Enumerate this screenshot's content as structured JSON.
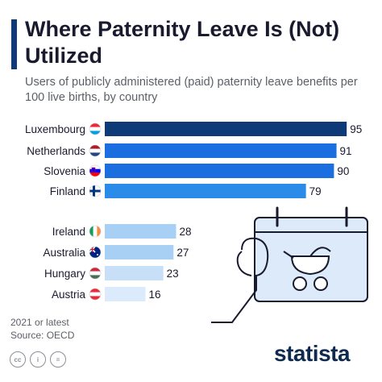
{
  "header": {
    "title": "Where Paternity Leave Is (Not) Utilized",
    "subtitle": "Users of publicly administered (paid) paternity leave benefits per 100 live births, by country"
  },
  "chart_data": {
    "type": "bar",
    "orientation": "horizontal",
    "categories": [
      "Luxembourg",
      "Netherlands",
      "Slovenia",
      "Finland",
      "Ireland",
      "Australia",
      "Hungary",
      "Austria"
    ],
    "values": [
      95,
      91,
      90,
      79,
      28,
      27,
      23,
      16
    ],
    "bar_colors": [
      "#0e3a78",
      "#1a6ee0",
      "#1a6ee0",
      "#2b8be8",
      "#a8d0f5",
      "#a8d0f5",
      "#c7e0f8",
      "#dcebfb"
    ],
    "flags": [
      "luxembourg-flag",
      "netherlands-flag",
      "slovenia-flag",
      "finland-flag",
      "ireland-flag",
      "australia-flag",
      "hungary-flag",
      "austria-flag"
    ],
    "xlim": [
      0,
      100
    ],
    "grid": false,
    "legend": "none"
  },
  "footer": {
    "note_line1": "2021 or latest",
    "note_line2": "Source: OECD",
    "logo": "statista"
  },
  "colors": {
    "accent": "#0e3a78",
    "text": "#1a1a2e",
    "muted": "#5b5f66"
  }
}
